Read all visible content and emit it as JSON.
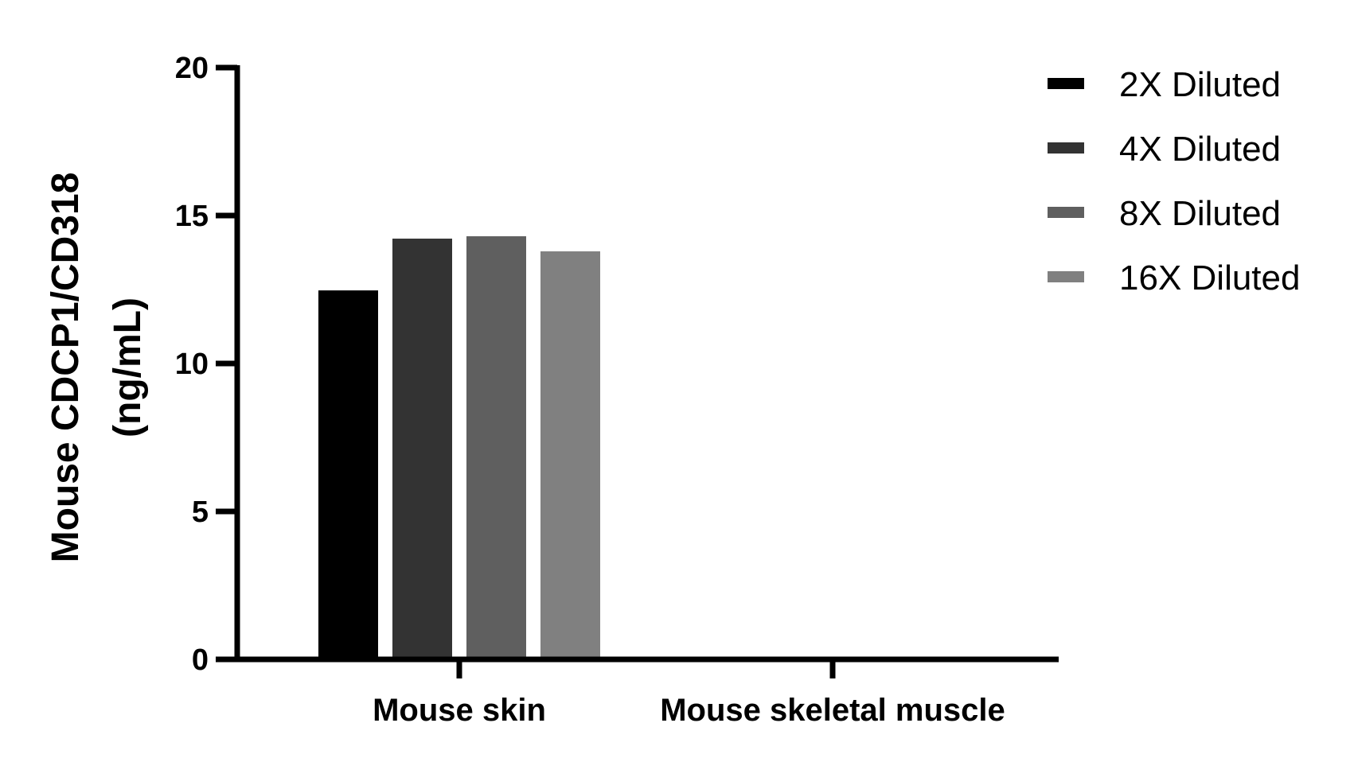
{
  "chart_data": {
    "type": "bar",
    "title": "",
    "xlabel": "",
    "ylabel": "Mouse CDCP1/CD318 (ng/mL)",
    "ylabel_lines": [
      "Mouse CDCP1/CD318",
      "(ng/mL)"
    ],
    "ylim": [
      0,
      20
    ],
    "yticks": [
      0,
      5,
      10,
      15,
      20
    ],
    "grid": false,
    "legend_position": "right-top",
    "categories": [
      "Mouse skin",
      "Mouse skeletal muscle"
    ],
    "series": [
      {
        "name": "2X Diluted",
        "color": "#000000",
        "values": [
          12.47,
          0
        ]
      },
      {
        "name": "4X Diluted",
        "color": "#333333",
        "values": [
          14.22,
          0
        ]
      },
      {
        "name": "8X Diluted",
        "color": "#5f5f5f",
        "values": [
          14.3,
          0
        ]
      },
      {
        "name": "16X Diluted",
        "color": "#808080",
        "values": [
          13.79,
          0
        ]
      }
    ]
  }
}
